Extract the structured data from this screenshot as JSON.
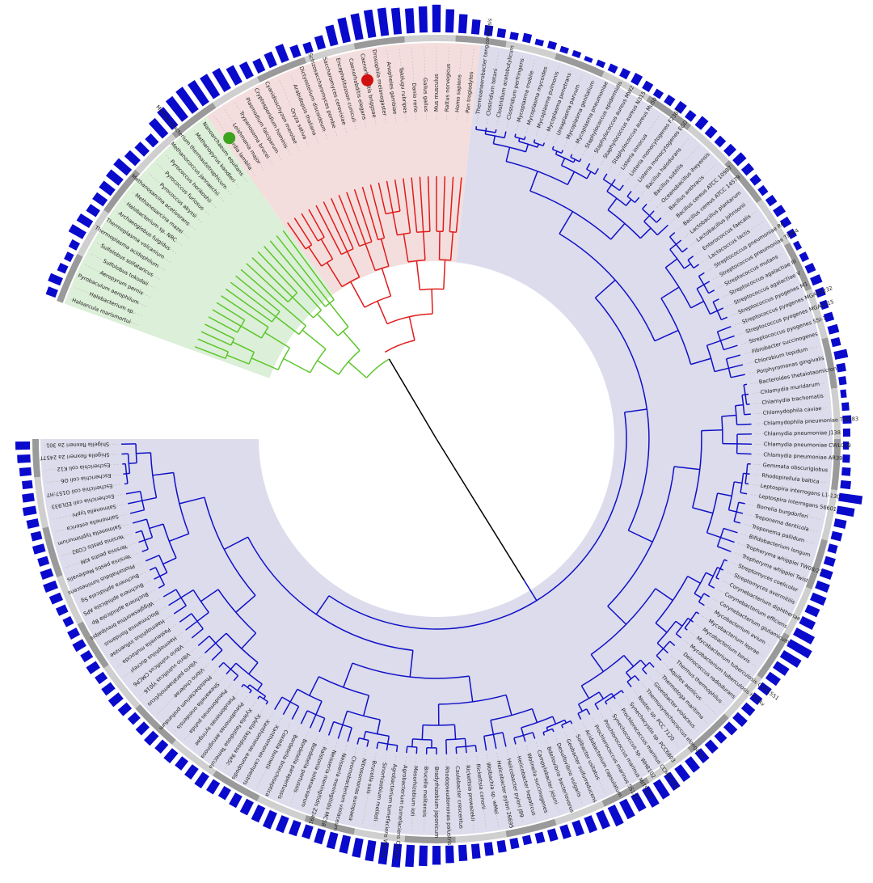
{
  "colors": {
    "archaea": "#5cc62a",
    "eukaryota": "#e01b1b",
    "bacteria": "#1010c8",
    "root": "#000000",
    "bar": "#0a0acc",
    "shade_archaea": "#dcefd8",
    "shade_eukaryota": "#f4dedd",
    "shade_bacteria": "#dcdcec",
    "ring_dark": "#9a9a9a",
    "ring_light": "#cfcfcf"
  },
  "markers": [
    {
      "leaf_index": 19,
      "color": "#3da21e",
      "name": "green-dot"
    },
    {
      "leaf_index": 32,
      "color": "#d01010",
      "name": "red-dot"
    }
  ],
  "leaves": [
    {
      "label": "Haloarcula marismortui",
      "group": "archaea",
      "bar": 0.35
    },
    {
      "label": "Halobacterium sp.",
      "group": "archaea",
      "bar": 0.45
    },
    {
      "label": "Pyrobaculum aerophilum",
      "group": "archaea",
      "bar": 0.3
    },
    {
      "label": "Aeropyrum pernix",
      "group": "archaea",
      "bar": 0.25
    },
    {
      "label": "Sulfolobus tokodaii",
      "group": "archaea",
      "bar": 0.3
    },
    {
      "label": "Sulfolobus solfataricus",
      "group": "archaea",
      "bar": 0.55
    },
    {
      "label": "Thermoplasma acidophilum",
      "group": "archaea",
      "bar": 0.5
    },
    {
      "label": "Thermoplasma volcanium",
      "group": "archaea",
      "bar": 0.4
    },
    {
      "label": "Archaeoglobus fulgidus",
      "group": "archaea",
      "bar": 0.45
    },
    {
      "label": "Halobacterium sp. NRC",
      "group": "archaea",
      "bar": 0.5
    },
    {
      "label": "Methanosarcina mazei",
      "group": "archaea",
      "bar": 0.55
    },
    {
      "label": "Methanosarcina acetivorans",
      "group": "archaea",
      "bar": 0.6
    },
    {
      "label": "Pyrococcus abyssi",
      "group": "archaea",
      "bar": 0.5
    },
    {
      "label": "Pyrococcus furiosus",
      "group": "archaea",
      "bar": 0.45
    },
    {
      "label": "Pyrococcus horikoshii",
      "group": "archaea",
      "bar": 0.4
    },
    {
      "label": "Methanococcus jannaschii",
      "group": "archaea",
      "bar": 0.7
    },
    {
      "label": "Methanobacterium thermautotrophicum",
      "group": "archaea",
      "bar": 0.8
    },
    {
      "label": "Methanopyrus kandleri",
      "group": "archaea",
      "bar": 0.9
    },
    {
      "label": "Nanoarchaeum equitans",
      "group": "archaea",
      "bar": 0.95
    },
    {
      "label": "Giardia lamblia",
      "group": "eukaryota",
      "bar": 0.9
    },
    {
      "label": "Leishmania major",
      "group": "eukaryota",
      "bar": 0.85
    },
    {
      "label": "Trypanosoma brucei",
      "group": "eukaryota",
      "bar": 0.8
    },
    {
      "label": "Plasmodium falciparum",
      "group": "eukaryota",
      "bar": 0.65
    },
    {
      "label": "Cryptosporidium hominis",
      "group": "eukaryota",
      "bar": 0.55
    },
    {
      "label": "Cyanidioschyzon merolae",
      "group": "eukaryota",
      "bar": 0.45
    },
    {
      "label": "Oryza sativa",
      "group": "eukaryota",
      "bar": 0.5
    },
    {
      "label": "Arabidopsis thaliana",
      "group": "eukaryota",
      "bar": 0.6
    },
    {
      "label": "Dictyostelium discoideum",
      "group": "eukaryota",
      "bar": 0.4
    },
    {
      "label": "Schizosaccharomyces pombe",
      "group": "eukaryota",
      "bar": 0.35
    },
    {
      "label": "Saccharomyces cerevisiae",
      "group": "eukaryota",
      "bar": 0.45
    },
    {
      "label": "Encephalitozoon cuniculi",
      "group": "eukaryota",
      "bar": 0.7
    },
    {
      "label": "Caenorhabditis elegans",
      "group": "eukaryota",
      "bar": 0.85
    },
    {
      "label": "Caenorhabditis briggsae",
      "group": "eukaryota",
      "bar": 0.9
    },
    {
      "label": "Drosophila melanogaster",
      "group": "eukaryota",
      "bar": 0.95
    },
    {
      "label": "Anopheles gambiae",
      "group": "eukaryota",
      "bar": 0.95
    },
    {
      "label": "Takifugu rubripes",
      "group": "eukaryota",
      "bar": 0.9
    },
    {
      "label": "Danio rerio",
      "group": "eukaryota",
      "bar": 0.85
    },
    {
      "label": "Gallus gallus",
      "group": "eukaryota",
      "bar": 0.9
    },
    {
      "label": "Mus musculus",
      "group": "eukaryota",
      "bar": 0.95
    },
    {
      "label": "Rattus norvegicus",
      "group": "eukaryota",
      "bar": 0.8
    },
    {
      "label": "Homo sapiens",
      "group": "eukaryota",
      "bar": 0.65
    },
    {
      "label": "Pan troglodytes",
      "group": "eukaryota",
      "bar": 0.5
    },
    {
      "label": "Thermoanaerobacter tengcongensis",
      "group": "bacteria",
      "bar": 0.35
    },
    {
      "label": "Clostridium tetani",
      "group": "bacteria",
      "bar": 0.3
    },
    {
      "label": "Clostridium acetobutylicum",
      "group": "bacteria",
      "bar": 0.25
    },
    {
      "label": "Clostridium perfringens",
      "group": "bacteria",
      "bar": 0.3
    },
    {
      "label": "Mycoplasma mobile",
      "group": "bacteria",
      "bar": 0.2
    },
    {
      "label": "Mycoplasma mycoides",
      "group": "bacteria",
      "bar": 0.25
    },
    {
      "label": "Mycoplasma pulmonis",
      "group": "bacteria",
      "bar": 0.2
    },
    {
      "label": "Mycoplasma penetrans",
      "group": "bacteria",
      "bar": 0.2
    },
    {
      "label": "Ureaplasma parvum",
      "group": "bacteria",
      "bar": 0.15
    },
    {
      "label": "Mycoplasma genitalium",
      "group": "bacteria",
      "bar": 0.2
    },
    {
      "label": "Mycoplasma pneumoniae",
      "group": "bacteria",
      "bar": 0.25
    },
    {
      "label": "Staphylococcus epidermidis",
      "group": "bacteria",
      "bar": 0.3
    },
    {
      "label": "Staphylococcus aureus MW2",
      "group": "bacteria",
      "bar": 0.35
    },
    {
      "label": "Staphylococcus aureus N315",
      "group": "bacteria",
      "bar": 0.3
    },
    {
      "label": "Staphylococcus aureus Mu50",
      "group": "bacteria",
      "bar": 0.25
    },
    {
      "label": "Listeria innocua",
      "group": "bacteria",
      "bar": 0.3
    },
    {
      "label": "Listeria monocytogenes F2365",
      "group": "bacteria",
      "bar": 0.35
    },
    {
      "label": "Listeria monocytogenes EGD",
      "group": "bacteria",
      "bar": 0.3
    },
    {
      "label": "Bacillus halodurans",
      "group": "bacteria",
      "bar": 0.4
    },
    {
      "label": "Bacillus subtilis",
      "group": "bacteria",
      "bar": 0.35
    },
    {
      "label": "Oceanobacillus iheyensis",
      "group": "bacteria",
      "bar": 0.3
    },
    {
      "label": "Bacillus anthracis",
      "group": "bacteria",
      "bar": 0.35
    },
    {
      "label": "Bacillus cereus ATCC 10987",
      "group": "bacteria",
      "bar": 0.4
    },
    {
      "label": "Bacillus cereus ATCC 14579",
      "group": "bacteria",
      "bar": 0.35
    },
    {
      "label": "Lactobacillus plantarum",
      "group": "bacteria",
      "bar": 0.3
    },
    {
      "label": "Lactobacillus johnsonii",
      "group": "bacteria",
      "bar": 0.25
    },
    {
      "label": "Enterococcus faecalis",
      "group": "bacteria",
      "bar": 0.3
    },
    {
      "label": "Lactococcus lactis",
      "group": "bacteria",
      "bar": 0.35
    },
    {
      "label": "Streptococcus pneumoniae R6",
      "group": "bacteria",
      "bar": 0.3
    },
    {
      "label": "Streptococcus pneumoniae TIGR4",
      "group": "bacteria",
      "bar": 0.25
    },
    {
      "label": "Streptococcus mutans",
      "group": "bacteria",
      "bar": 0.2
    },
    {
      "label": "Streptococcus agalactiae III",
      "group": "bacteria",
      "bar": 0.25
    },
    {
      "label": "Streptococcus agalactiae V",
      "group": "bacteria",
      "bar": 0.3
    },
    {
      "label": "Streptococcus pyogenes M1",
      "group": "bacteria",
      "bar": 0.35
    },
    {
      "label": "Streptococcus pyogenes MGAS8232",
      "group": "bacteria",
      "bar": 0.3
    },
    {
      "label": "Streptococcus pyogenes MGAS315",
      "group": "bacteria",
      "bar": 0.25
    },
    {
      "label": "Streptococcus pyogenes SSI-1",
      "group": "bacteria",
      "bar": 0.3
    },
    {
      "label": "Fibrobacter succinogenes",
      "group": "bacteria",
      "bar": 0.35
    },
    {
      "label": "Chlorobium tepidum",
      "group": "bacteria",
      "bar": 0.3
    },
    {
      "label": "Porphyromonas gingivalis",
      "group": "bacteria",
      "bar": 0.45
    },
    {
      "label": "Bacteroides thetaiotaomicron",
      "group": "bacteria",
      "bar": 0.3
    },
    {
      "label": "Chlamydia muridarum",
      "group": "bacteria",
      "bar": 0.25
    },
    {
      "label": "Chlamydia trachomatis",
      "group": "bacteria",
      "bar": 0.2
    },
    {
      "label": "Chlamydophila caviae",
      "group": "bacteria",
      "bar": 0.25
    },
    {
      "label": "Chlamydophila pneumoniae TW183",
      "group": "bacteria",
      "bar": 0.3
    },
    {
      "label": "Chlamydia pneumoniae J138",
      "group": "bacteria",
      "bar": 0.25
    },
    {
      "label": "Chlamydia pneumoniae CWL029",
      "group": "bacteria",
      "bar": 0.2
    },
    {
      "label": "Chlamydia pneumoniae AR39",
      "group": "bacteria",
      "bar": 0.25
    },
    {
      "label": "Gemmata obscuriglobus",
      "group": "bacteria",
      "bar": 0.3
    },
    {
      "label": "Rhodopirellula baltica",
      "group": "bacteria",
      "bar": 0.35
    },
    {
      "label": "Leptospira interrogans L1-130",
      "group": "bacteria",
      "bar": 0.8
    },
    {
      "label": "Leptospira interrogans 56601",
      "group": "bacteria",
      "bar": 0.6
    },
    {
      "label": "Borrelia burgdorferi",
      "group": "bacteria",
      "bar": 0.4
    },
    {
      "label": "Treponema denticola",
      "group": "bacteria",
      "bar": 0.35
    },
    {
      "label": "Treponema pallidum",
      "group": "bacteria",
      "bar": 0.3
    },
    {
      "label": "Bifidobacterium longum",
      "group": "bacteria",
      "bar": 0.35
    },
    {
      "label": "Tropheryma whipplei TW08/27",
      "group": "bacteria",
      "bar": 0.4
    },
    {
      "label": "Tropheryma whipplei Twist",
      "group": "bacteria",
      "bar": 0.45
    },
    {
      "label": "Streptomyces coelicolor",
      "group": "bacteria",
      "bar": 0.5
    },
    {
      "label": "Streptomyces avermitilis",
      "group": "bacteria",
      "bar": 0.45
    },
    {
      "label": "Corynebacterium diphtheriae",
      "group": "bacteria",
      "bar": 0.5
    },
    {
      "label": "Corynebacterium efficiens",
      "group": "bacteria",
      "bar": 0.7
    },
    {
      "label": "Corynebacterium glutamicum",
      "group": "bacteria",
      "bar": 0.85
    },
    {
      "label": "Mycobacterium avium",
      "group": "bacteria",
      "bar": 0.7
    },
    {
      "label": "Mycobacterium leprae",
      "group": "bacteria",
      "bar": 0.5
    },
    {
      "label": "Mycobacterium bovis",
      "group": "bacteria",
      "bar": 0.45
    },
    {
      "label": "Mycobacterium tuberculosis CDC1551",
      "group": "bacteria",
      "bar": 0.4
    },
    {
      "label": "Mycobacterium tuberculosis H37Rv",
      "group": "bacteria",
      "bar": 0.35
    },
    {
      "label": "Deinococcus radiodurans",
      "group": "bacteria",
      "bar": 0.4
    },
    {
      "label": "Thermus thermophilus",
      "group": "bacteria",
      "bar": 0.45
    },
    {
      "label": "Aquifex aeolicus",
      "group": "bacteria",
      "bar": 0.4
    },
    {
      "label": "Thermotoga maritima",
      "group": "bacteria",
      "bar": 0.35
    },
    {
      "label": "Gloeobacter violaceus",
      "group": "bacteria",
      "bar": 0.4
    },
    {
      "label": "Thermosynechococcus elongatus",
      "group": "bacteria",
      "bar": 0.45
    },
    {
      "label": "Nostoc sp. PCC 7120",
      "group": "bacteria",
      "bar": 0.5
    },
    {
      "label": "Synechocystis sp. PCC6803",
      "group": "bacteria",
      "bar": 0.55
    },
    {
      "label": "Prochlorococcus marinus CCMP1378",
      "group": "bacteria",
      "bar": 0.6
    },
    {
      "label": "Synechococcus sp. WH8102",
      "group": "bacteria",
      "bar": 0.65
    },
    {
      "label": "Prochlorococcus marinus MIT9313",
      "group": "bacteria",
      "bar": 0.7
    },
    {
      "label": "Prochlorococcus marinus SS120",
      "group": "bacteria",
      "bar": 0.6
    },
    {
      "label": "Acidobacterium capsulatum",
      "group": "bacteria",
      "bar": 0.65
    },
    {
      "label": "Solibacter usitatus",
      "group": "bacteria",
      "bar": 0.7
    },
    {
      "label": "Geobacter sulfurreducens",
      "group": "bacteria",
      "bar": 0.6
    },
    {
      "label": "Desulfovibrio vulgaris",
      "group": "bacteria",
      "bar": 0.55
    },
    {
      "label": "Bdellovibrio bacteriovorus",
      "group": "bacteria",
      "bar": 0.5
    },
    {
      "label": "Campylobacter jejuni",
      "group": "bacteria",
      "bar": 0.45
    },
    {
      "label": "Wolinella succinogenes",
      "group": "bacteria",
      "bar": 0.4
    },
    {
      "label": "Helicobacter hepaticus",
      "group": "bacteria",
      "bar": 0.35
    },
    {
      "label": "Helicobacter pylori J99",
      "group": "bacteria",
      "bar": 0.3
    },
    {
      "label": "Helicobacter pylori 26695",
      "group": "bacteria",
      "bar": 0.35
    },
    {
      "label": "Wolbachia sp. wMel",
      "group": "bacteria",
      "bar": 0.4
    },
    {
      "label": "Rickettsia conorii",
      "group": "bacteria",
      "bar": 0.45
    },
    {
      "label": "Rickettsia prowazekii",
      "group": "bacteria",
      "bar": 0.5
    },
    {
      "label": "Caulobacter crescentus",
      "group": "bacteria",
      "bar": 0.55
    },
    {
      "label": "Rhodopseudomonas palustris",
      "group": "bacteria",
      "bar": 0.6
    },
    {
      "label": "Bradyrhizobium japonicum",
      "group": "bacteria",
      "bar": 0.65
    },
    {
      "label": "Brucella melitensis",
      "group": "bacteria",
      "bar": 0.7
    },
    {
      "label": "Mesorhizobium loti",
      "group": "bacteria",
      "bar": 0.75
    },
    {
      "label": "Agrobacterium tumefaciens Cereon",
      "group": "bacteria",
      "bar": 0.8
    },
    {
      "label": "Agrobacterium tumefaciens WashU",
      "group": "bacteria",
      "bar": 0.75
    },
    {
      "label": "Sinorhizobium meliloti",
      "group": "bacteria",
      "bar": 0.7
    },
    {
      "label": "Brucella suis",
      "group": "bacteria",
      "bar": 0.65
    },
    {
      "label": "Nitrosomonas europaea",
      "group": "bacteria",
      "bar": 0.6
    },
    {
      "label": "Chromobacterium violaceum",
      "group": "bacteria",
      "bar": 0.55
    },
    {
      "label": "Neisseria meningitidis MC58",
      "group": "bacteria",
      "bar": 0.5
    },
    {
      "label": "Neisseria meningitidis Z2491",
      "group": "bacteria",
      "bar": 0.45
    },
    {
      "label": "Ralstonia solanacearum",
      "group": "bacteria",
      "bar": 0.5
    },
    {
      "label": "Bordetella pertussis",
      "group": "bacteria",
      "bar": 0.55
    },
    {
      "label": "Bordetella parapertussis",
      "group": "bacteria",
      "bar": 0.6
    },
    {
      "label": "Bordetella bronchiseptica",
      "group": "bacteria",
      "bar": 0.55
    },
    {
      "label": "Coxiella burnetii",
      "group": "bacteria",
      "bar": 0.5
    },
    {
      "label": "Xanthomonas campestris",
      "group": "bacteria",
      "bar": 0.45
    },
    {
      "label": "Xanthomonas axonopodis",
      "group": "bacteria",
      "bar": 0.4
    },
    {
      "label": "Xylella fastidiosa 9a5c",
      "group": "bacteria",
      "bar": 0.45
    },
    {
      "label": "Xylella fastidiosa Temecula",
      "group": "bacteria",
      "bar": 0.5
    },
    {
      "label": "Pseudomonas aeruginosa",
      "group": "bacteria",
      "bar": 0.45
    },
    {
      "label": "Pseudomonas syringae",
      "group": "bacteria",
      "bar": 0.4
    },
    {
      "label": "Pseudomonas putida",
      "group": "bacteria",
      "bar": 0.45
    },
    {
      "label": "Shewanella oneidensis",
      "group": "bacteria",
      "bar": 0.4
    },
    {
      "label": "Photobacterium profundum",
      "group": "bacteria",
      "bar": 0.45
    },
    {
      "label": "Vibrio cholerae",
      "group": "bacteria",
      "bar": 0.4
    },
    {
      "label": "Vibrio parahaemolyticus",
      "group": "bacteria",
      "bar": 0.35
    },
    {
      "label": "Vibrio vulnificus YJ016",
      "group": "bacteria",
      "bar": 0.4
    },
    {
      "label": "Vibrio vulnificus CMCP6",
      "group": "bacteria",
      "bar": 0.45
    },
    {
      "label": "Haemophilus ducreyi",
      "group": "bacteria",
      "bar": 0.4
    },
    {
      "label": "Pasteurella multocida",
      "group": "bacteria",
      "bar": 0.35
    },
    {
      "label": "Haemophilus influenzae",
      "group": "bacteria",
      "bar": 0.4
    },
    {
      "label": "Blochmannia floridanus",
      "group": "bacteria",
      "bar": 0.35
    },
    {
      "label": "Wigglesworthia brevipalpis",
      "group": "bacteria",
      "bar": 0.4
    },
    {
      "label": "Buchnera aphidicola Bp",
      "group": "bacteria",
      "bar": 0.35
    },
    {
      "label": "Buchnera aphidicola APS",
      "group": "bacteria",
      "bar": 0.3
    },
    {
      "label": "Buchnera aphidicola Sg",
      "group": "bacteria",
      "bar": 0.35
    },
    {
      "label": "Photorhabdus luminescens",
      "group": "bacteria",
      "bar": 0.4
    },
    {
      "label": "Yersinia pestis Medievalis",
      "group": "bacteria",
      "bar": 0.45
    },
    {
      "label": "Yersinia pestis KIM",
      "group": "bacteria",
      "bar": 0.4
    },
    {
      "label": "Yersinia pestis CO92",
      "group": "bacteria",
      "bar": 0.35
    },
    {
      "label": "Salmonella typhimurium",
      "group": "bacteria",
      "bar": 0.4
    },
    {
      "label": "Salmonella enterica",
      "group": "bacteria",
      "bar": 0.35
    },
    {
      "label": "Salmonella typhi",
      "group": "bacteria",
      "bar": 0.4
    },
    {
      "label": "Escherichia coli EDL933",
      "group": "bacteria",
      "bar": 0.45
    },
    {
      "label": "Escherichia coli O157:H7",
      "group": "bacteria",
      "bar": 0.4
    },
    {
      "label": "Escherichia coli O6",
      "group": "bacteria",
      "bar": 0.35
    },
    {
      "label": "Escherichia coli K12",
      "group": "bacteria",
      "bar": 0.4
    },
    {
      "label": "Shigella flexneri 2a 2457T",
      "group": "bacteria",
      "bar": 0.45
    },
    {
      "label": "Shigella flexneri 2a 301",
      "group": "bacteria",
      "bar": 0.5
    }
  ]
}
